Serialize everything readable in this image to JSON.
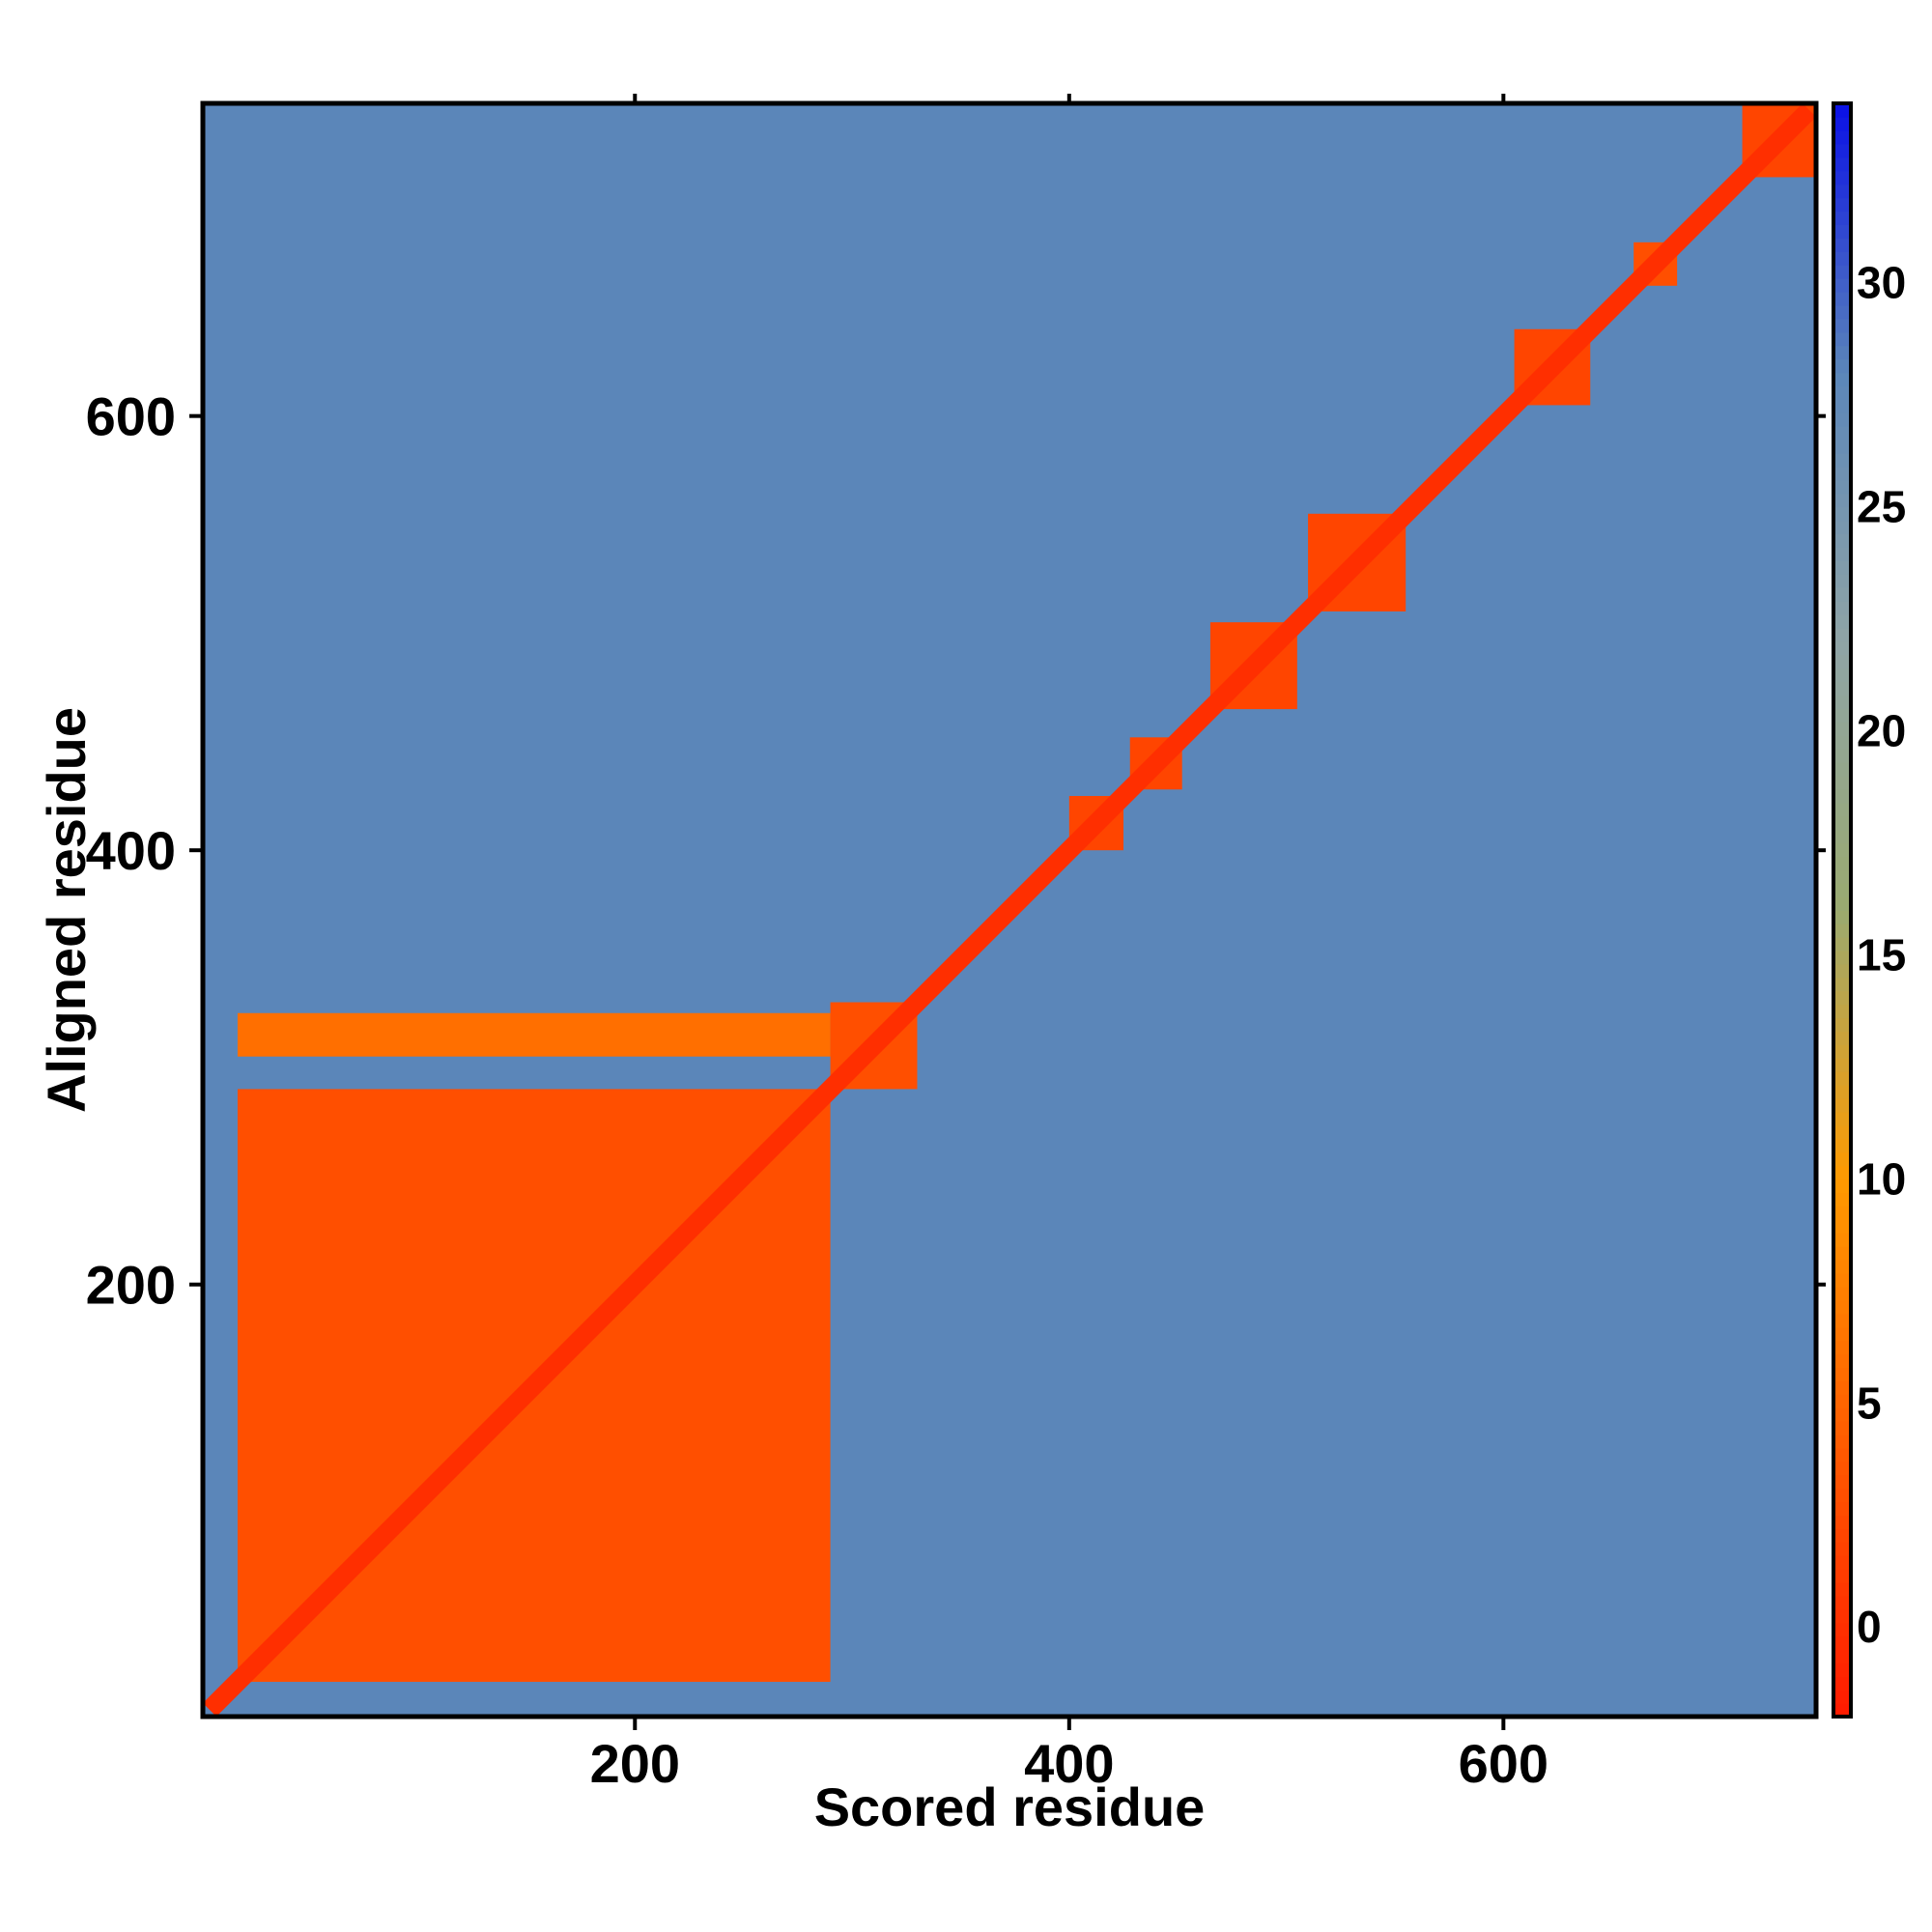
{
  "chart_data": {
    "type": "heatmap",
    "title": "",
    "xlabel": "Scored residue",
    "ylabel": "Aligned residue",
    "xlim": [
      1,
      744
    ],
    "ylim": [
      1,
      744
    ],
    "x_ticks": [
      200,
      400,
      600
    ],
    "y_ticks": [
      200,
      400,
      600
    ],
    "colorbar": {
      "range": [
        -2,
        34
      ],
      "ticks": [
        0,
        5,
        10,
        15,
        20,
        25,
        30
      ],
      "colors": [
        "#ff1a00",
        "#ff5a00",
        "#ff9a00",
        "#9aaa70",
        "#8fa4a6",
        "#5b86b9",
        "#0a10e6"
      ]
    },
    "grid": false,
    "blocks": [
      {
        "x": [
          17,
          290
        ],
        "y": [
          17,
          290
        ],
        "value": 3
      },
      {
        "x": [
          17,
          290
        ],
        "y": [
          305,
          325
        ],
        "value": 6
      },
      {
        "x": [
          290,
          330
        ],
        "y": [
          290,
          330
        ],
        "value": 3
      },
      {
        "x": [
          400,
          425
        ],
        "y": [
          400,
          425
        ],
        "value": 2
      },
      {
        "x": [
          428,
          452
        ],
        "y": [
          428,
          452
        ],
        "value": 2
      },
      {
        "x": [
          465,
          505
        ],
        "y": [
          465,
          505
        ],
        "value": 2
      },
      {
        "x": [
          510,
          555
        ],
        "y": [
          510,
          555
        ],
        "value": 2
      },
      {
        "x": [
          605,
          640
        ],
        "y": [
          605,
          640
        ],
        "value": 2
      },
      {
        "x": [
          660,
          680
        ],
        "y": [
          660,
          680
        ],
        "value": 3
      },
      {
        "x": [
          710,
          744
        ],
        "y": [
          710,
          744
        ],
        "value": 2
      }
    ],
    "diagonal_value": 0,
    "background_value": 28
  }
}
